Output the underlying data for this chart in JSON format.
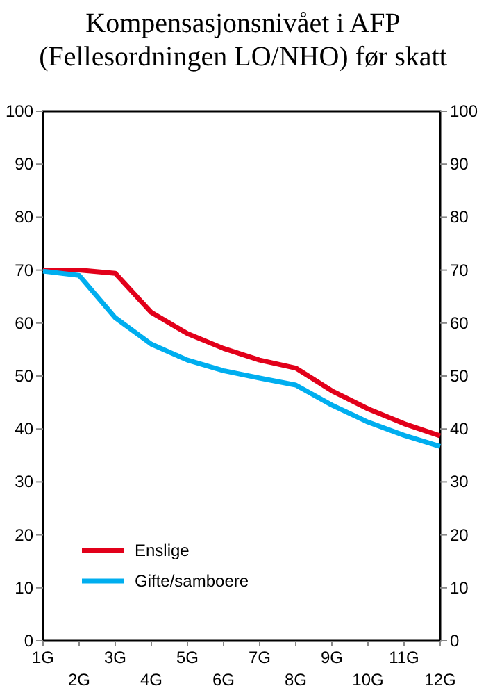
{
  "chart_data": {
    "type": "line",
    "title": "Kompensasjonsnivået i AFP (Fellesordningen LO/NHO) før skatt",
    "categories": [
      "1G",
      "2G",
      "3G",
      "4G",
      "5G",
      "6G",
      "7G",
      "8G",
      "9G",
      "10G",
      "11G",
      "12G"
    ],
    "series": [
      {
        "name": "Enslige",
        "color": "#e2001a",
        "values": [
          70,
          70,
          69.4,
          62,
          58,
          55.2,
          53,
          51.5,
          47.2,
          43.8,
          41,
          38.7
        ]
      },
      {
        "name": "Gifte/samboere",
        "color": "#00aeef",
        "values": [
          69.8,
          69,
          61,
          56,
          53,
          51,
          49.6,
          48.3,
          44.5,
          41.3,
          38.8,
          36.7
        ]
      }
    ],
    "ylim": [
      0,
      100
    ],
    "yticks": [
      0,
      10,
      20,
      30,
      40,
      50,
      60,
      70,
      80,
      90,
      100
    ],
    "y2lim": [
      0,
      100
    ],
    "y2ticks": [
      0,
      10,
      20,
      30,
      40,
      50,
      60,
      70,
      80,
      90,
      100
    ],
    "grid": false,
    "legend": "bottom left",
    "marker": "none",
    "line_style": "solid"
  }
}
